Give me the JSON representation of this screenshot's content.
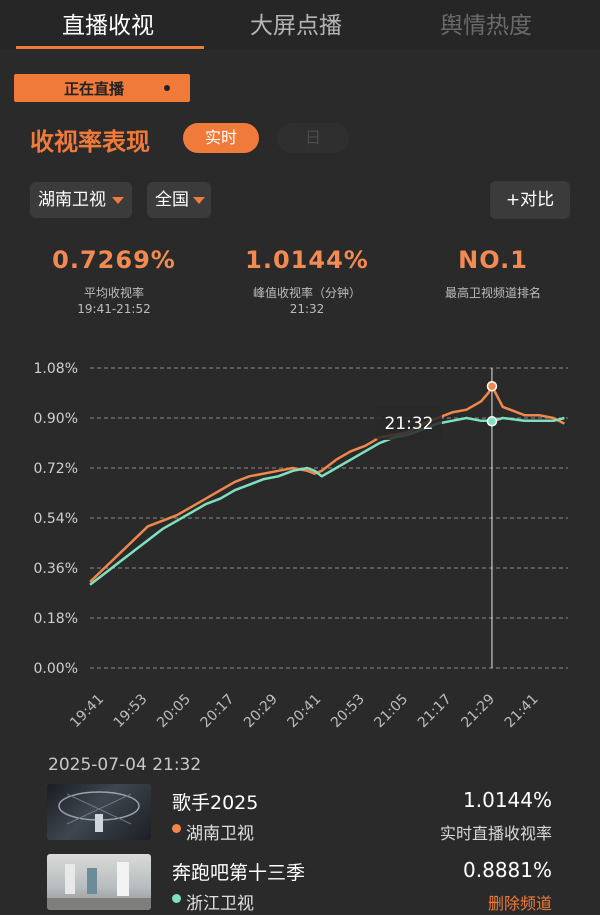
{
  "tabs": [
    {
      "label": "直播收视",
      "active": true
    },
    {
      "label": "大屏点播",
      "active": false
    },
    {
      "label": "舆情热度",
      "active": false
    }
  ],
  "live_badge": "正在直播",
  "section": {
    "title": "收视率表现",
    "toggle": {
      "realtime": "实时",
      "day": "日"
    }
  },
  "filters": {
    "channel": "湖南卫视",
    "region": "全国",
    "compare": "+对比"
  },
  "stats": [
    {
      "value": "0.7269%",
      "label": "平均收视率",
      "sub": "19:41-21:52"
    },
    {
      "value": "1.0144%",
      "label": "峰值收视率（分钟）",
      "sub": "21:32"
    },
    {
      "value": "NO.1",
      "label": "最高卫视频道排名",
      "sub": ""
    }
  ],
  "colors": {
    "accent": "#f07a3a",
    "hunan": "#f0874d",
    "zhejiang": "#7fe0bf",
    "background": "#2a2a2a"
  },
  "chart_data": {
    "type": "line",
    "x": [
      "19:41",
      "19:45",
      "19:49",
      "19:53",
      "19:57",
      "20:01",
      "20:05",
      "20:09",
      "20:13",
      "20:17",
      "20:21",
      "20:25",
      "20:29",
      "20:33",
      "20:37",
      "20:41",
      "20:43",
      "20:45",
      "20:49",
      "20:53",
      "20:57",
      "21:01",
      "21:05",
      "21:09",
      "21:13",
      "21:17",
      "21:21",
      "21:25",
      "21:29",
      "21:31",
      "21:32",
      "21:35",
      "21:41",
      "21:45",
      "21:49",
      "21:52"
    ],
    "series": [
      {
        "name": "湖南卫视",
        "color": "#f0874d",
        "values": [
          0.31,
          0.36,
          0.41,
          0.46,
          0.51,
          0.53,
          0.55,
          0.58,
          0.61,
          0.64,
          0.67,
          0.69,
          0.7,
          0.71,
          0.72,
          0.71,
          0.7,
          0.71,
          0.75,
          0.78,
          0.8,
          0.83,
          0.84,
          0.85,
          0.88,
          0.9,
          0.92,
          0.93,
          0.96,
          0.99,
          1.0144,
          0.94,
          0.91,
          0.91,
          0.9,
          0.88
        ]
      },
      {
        "name": "浙江卫视",
        "color": "#7fe0bf",
        "values": [
          0.3,
          0.34,
          0.38,
          0.42,
          0.46,
          0.5,
          0.53,
          0.56,
          0.59,
          0.61,
          0.64,
          0.66,
          0.68,
          0.69,
          0.71,
          0.72,
          0.71,
          0.69,
          0.72,
          0.75,
          0.78,
          0.81,
          0.83,
          0.84,
          0.86,
          0.88,
          0.89,
          0.9,
          0.89,
          0.89,
          0.8881,
          0.9,
          0.89,
          0.89,
          0.89,
          0.9
        ]
      }
    ],
    "ylim": [
      0,
      1.08
    ],
    "y_ticks": [
      "0.00%",
      "0.18%",
      "0.36%",
      "0.54%",
      "0.72%",
      "0.90%",
      "1.08%"
    ],
    "y_tick_values": [
      0,
      0.18,
      0.36,
      0.54,
      0.72,
      0.9,
      1.08
    ],
    "x_ticks": [
      "19:41",
      "19:53",
      "20:05",
      "20:17",
      "20:29",
      "20:41",
      "20:53",
      "21:05",
      "21:17",
      "21:29",
      "21:41"
    ],
    "cursor": {
      "x": "21:32",
      "label": "21:32"
    },
    "grid": true
  },
  "detail": {
    "date": "2025-07-04 21:32",
    "rows": [
      {
        "program": "歌手2025",
        "channel": "湖南卫视",
        "value": "1.0144%",
        "caption": "实时直播收视率",
        "caption_color": "#d8d8d8",
        "dot_color": "#f0874d",
        "thumb_icon": "stage-thumbnail"
      },
      {
        "program": "奔跑吧第十三季",
        "channel": "浙江卫视",
        "value": "0.8881%",
        "caption": "删除频道",
        "caption_color": "#f07a3a",
        "dot_color": "#7fe0bf",
        "thumb_icon": "show-thumbnail"
      }
    ]
  }
}
